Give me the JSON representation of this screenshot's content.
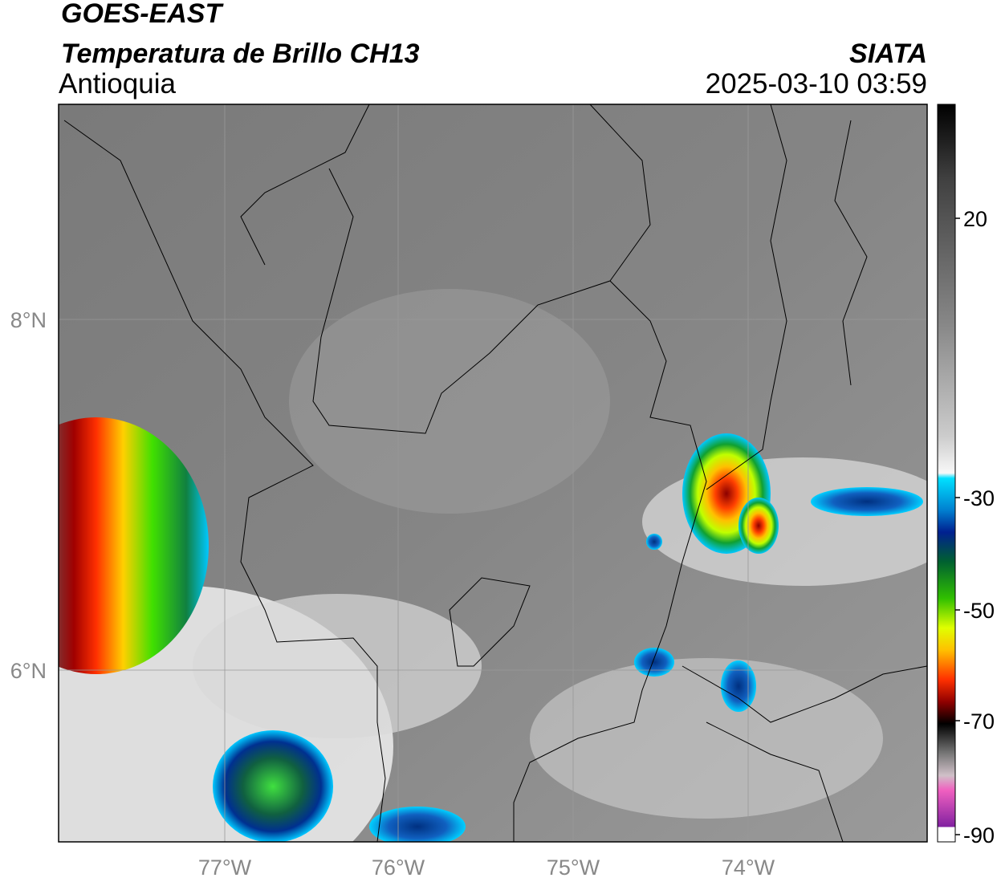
{
  "header": {
    "title": "GOES-EAST",
    "subtitle": "Temperatura de Brillo CH13",
    "region": "Antioquia",
    "source": "SIATA",
    "timestamp": "2025-03-10 03:59"
  },
  "map": {
    "lat_labels": [
      "8°N",
      "6°N"
    ],
    "lon_labels": [
      "77°W",
      "76°W",
      "75°W",
      "74°W"
    ]
  },
  "colorbar": {
    "tick_labels": [
      "20",
      "-30",
      "-50",
      "-70",
      "-90"
    ]
  }
}
